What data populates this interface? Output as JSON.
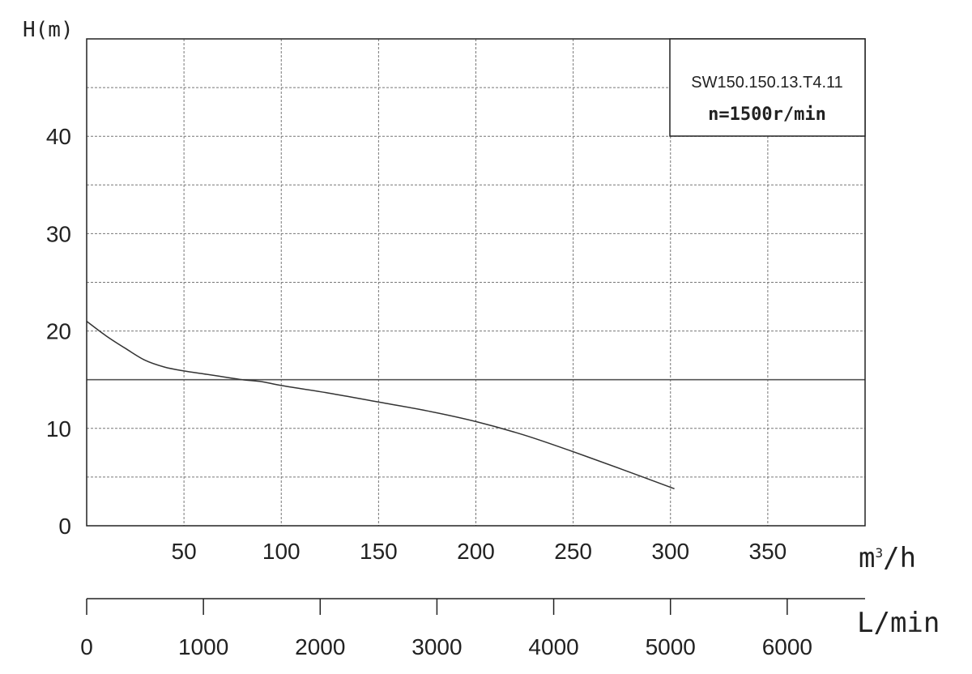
{
  "chart_data": {
    "type": "line",
    "ylabel": "H(m)",
    "xlabel_flow_base": "m",
    "xlabel_flow_exp": "3",
    "xlabel_flow_tail": "/h",
    "xlabel_secondary": "L/min",
    "ylim": [
      0,
      50
    ],
    "xlim": [
      0,
      400
    ],
    "y_ticks": [
      0,
      10,
      20,
      30,
      40
    ],
    "y_tick_labels": [
      "0",
      "10",
      "20",
      "30",
      "40"
    ],
    "x_ticks": [
      50,
      100,
      150,
      200,
      250,
      300,
      350
    ],
    "x_tick_labels": [
      "50",
      "100",
      "150",
      "200",
      "250",
      "300",
      "350"
    ],
    "x2_ticks": [
      0,
      1000,
      2000,
      3000,
      4000,
      5000,
      6000
    ],
    "x2_tick_labels": [
      "0",
      "1000",
      "2000",
      "3000",
      "4000",
      "5000",
      "6000"
    ],
    "x2_lim": [
      0,
      6667
    ],
    "grid": true,
    "legend_box": {
      "model": "SW150.150.13.T4.11",
      "speed": "n=1500r/min",
      "placement": "top-right"
    },
    "reference_line_y": 15,
    "series": [
      {
        "x": [
          0,
          10,
          20,
          30,
          40,
          50,
          60,
          70,
          80,
          90,
          100,
          125,
          150,
          175,
          200,
          225,
          250,
          275,
          302
        ],
        "y": [
          21.0,
          19.5,
          18.2,
          17.0,
          16.3,
          15.9,
          15.6,
          15.3,
          15.0,
          14.8,
          14.4,
          13.6,
          12.7,
          11.8,
          10.7,
          9.3,
          7.6,
          5.8,
          3.8
        ]
      }
    ]
  },
  "colors": {
    "axis": "#222222",
    "grid": "#777777",
    "curve": "#333333",
    "reference_line": "#555555"
  }
}
